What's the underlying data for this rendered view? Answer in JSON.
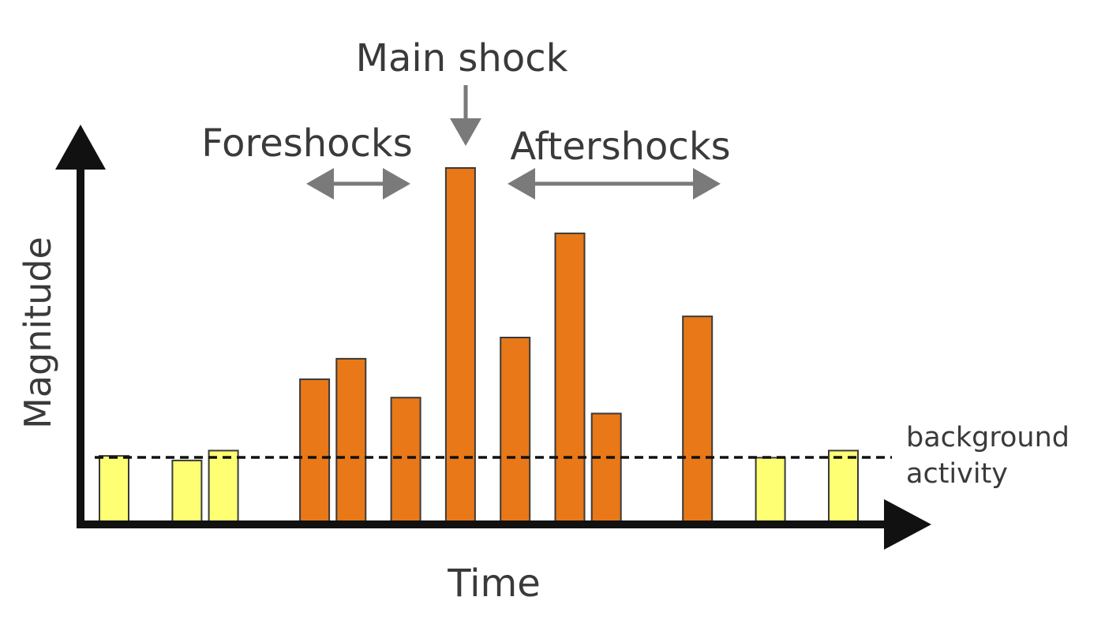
{
  "labels": {
    "main_shock": "Main shock",
    "foreshocks": "Foreshocks",
    "aftershocks": "Aftershocks",
    "y_axis": "Magnitude",
    "x_axis": "Time",
    "background_line1": "background",
    "background_line2": "activity"
  },
  "colors": {
    "background_event": "#ffff73",
    "main_sequence_event": "#e87818",
    "axis": "#111111",
    "annotation_arrow": "#7a7a7a",
    "bar_outline": "#3a3a3a"
  },
  "chart_data": {
    "type": "bar",
    "ylim": [
      0,
      10
    ],
    "background_level": 1.85,
    "bars": [
      {
        "t": 0,
        "magnitude": 1.85,
        "group": "background"
      },
      {
        "t": 2,
        "magnitude": 1.72,
        "group": "background"
      },
      {
        "t": 3,
        "magnitude": 2.0,
        "group": "background"
      },
      {
        "t": 5.5,
        "magnitude": 4.02,
        "group": "foreshock"
      },
      {
        "t": 6.5,
        "magnitude": 4.6,
        "group": "foreshock"
      },
      {
        "t": 8,
        "magnitude": 3.5,
        "group": "foreshock"
      },
      {
        "t": 9.5,
        "magnitude": 10.0,
        "group": "main"
      },
      {
        "t": 11,
        "magnitude": 5.2,
        "group": "aftershock"
      },
      {
        "t": 12.5,
        "magnitude": 8.15,
        "group": "aftershock"
      },
      {
        "t": 13.5,
        "magnitude": 3.05,
        "group": "aftershock"
      },
      {
        "t": 16,
        "magnitude": 5.8,
        "group": "aftershock"
      },
      {
        "t": 18,
        "magnitude": 1.8,
        "group": "background"
      },
      {
        "t": 20,
        "magnitude": 2.0,
        "group": "background"
      }
    ]
  }
}
